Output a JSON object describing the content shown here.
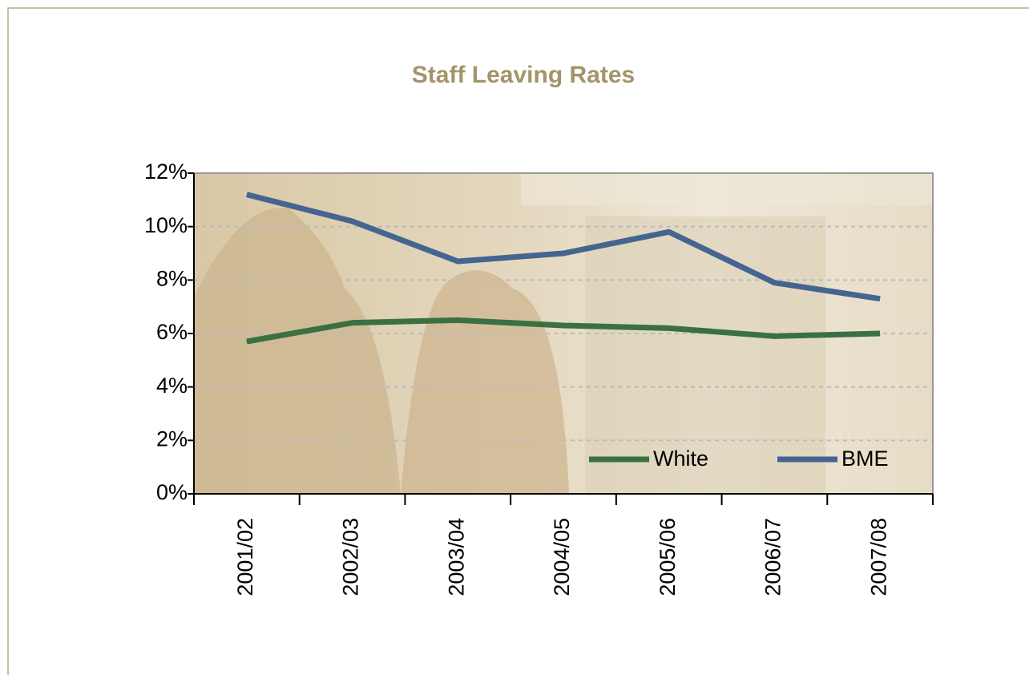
{
  "chart_data": {
    "type": "line",
    "title": "Staff Leaving Rates",
    "categories": [
      "2001/02",
      "2002/03",
      "2003/04",
      "2004/05",
      "2005/06",
      "2006/07",
      "2007/08"
    ],
    "series": [
      {
        "name": "White",
        "color": "#3b7042",
        "values": [
          5.7,
          6.4,
          6.5,
          6.3,
          6.2,
          5.9,
          6.0
        ]
      },
      {
        "name": "BME",
        "color": "#44658f",
        "values": [
          11.2,
          10.2,
          8.7,
          9.0,
          9.8,
          7.9,
          7.3
        ]
      }
    ],
    "ylim": [
      0,
      12
    ],
    "yticks": [
      {
        "value": 0,
        "label": "0%"
      },
      {
        "value": 2,
        "label": "2%"
      },
      {
        "value": 4,
        "label": "4%"
      },
      {
        "value": 6,
        "label": "6%"
      },
      {
        "value": 8,
        "label": "8%"
      },
      {
        "value": 10,
        "label": "10%"
      },
      {
        "value": 12,
        "label": "12%"
      }
    ],
    "grid": true,
    "legend": "bottom-right"
  }
}
